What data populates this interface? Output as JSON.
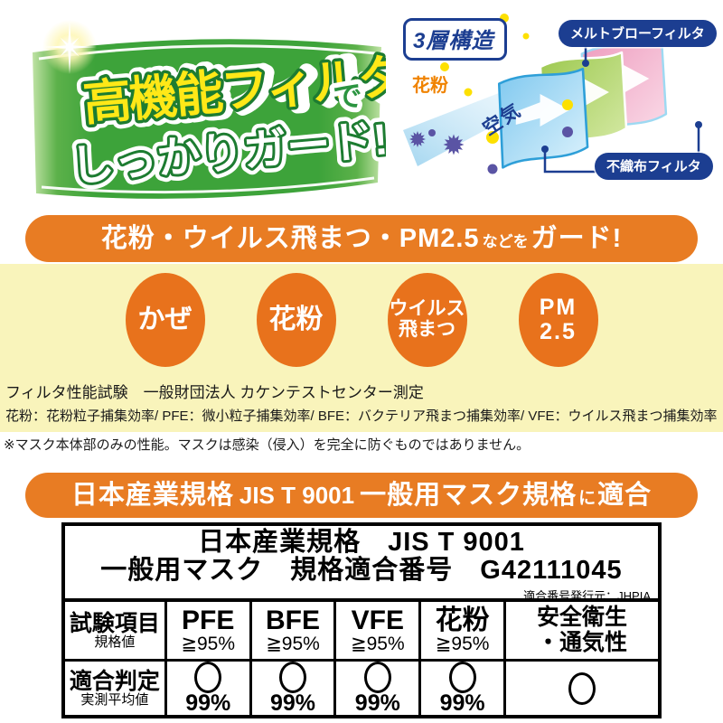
{
  "header": {
    "catch_line1_main": "高機能フィルタ",
    "catch_line1_suffix": "で",
    "catch_line2": "しっかりガード!",
    "diagram": {
      "badge": "3層構造",
      "label_melt_blown": "メルトブローフィルタ",
      "label_nonwoven": "不織布フィルタ",
      "pollen_label": "花粉",
      "air_label": "空気"
    }
  },
  "banner1": {
    "text_big1": "花粉・ウイルス飛まつ・PM2.5",
    "text_small": "などを",
    "text_big2": "ガード!"
  },
  "circles": [
    {
      "line1": "かぜ"
    },
    {
      "line1": "花粉"
    },
    {
      "line1": "ウイルス",
      "line2": "飛まつ"
    },
    {
      "line1": "PM",
      "line2": "2.5"
    }
  ],
  "test_info": {
    "line1": "フィルタ性能試験　一般財団法人 カケンテストセンター測定",
    "line2": "花粉：花粉粒子捕集効率/ PFE：微小粒子捕集効率/ BFE：バクテリア飛まつ捕集効率/ VFE：ウイルス飛まつ捕集効率",
    "note": "※マスク本体部のみの性能。マスクは感染（侵入）を完全に防ぐものではありません。"
  },
  "banner2": {
    "part1": "日本産業規格",
    "part2": "JIS T 9001",
    "part3": "一般用マスク規格",
    "part4": "に",
    "part5": "適合"
  },
  "jis_table": {
    "title_line1": "日本産業規格　JIS T 9001",
    "title_line2": "一般用マスク　規格適合番号　G42111045",
    "issuer": "適合番号発行元：JHPIA",
    "row1_header_main": "試験項目",
    "row1_header_sub": "規格値",
    "row2_header_main": "適合判定",
    "row2_header_sub": "実測平均値",
    "col_safety_line1": "安全衛生",
    "col_safety_line2": "・通気性",
    "pass_mark": "○",
    "columns": [
      {
        "name": "PFE",
        "standard": "≧95%",
        "result": "99%"
      },
      {
        "name": "BFE",
        "standard": "≧95%",
        "result": "99%"
      },
      {
        "name": "VFE",
        "standard": "≧95%",
        "result": "99%"
      },
      {
        "name": "花粉",
        "standard": "≧95%",
        "result": "99%"
      }
    ]
  },
  "colors": {
    "orange": "#e87c23",
    "navy": "#1c3e91",
    "ribbon_green": "#3da33a",
    "yellow_bg": "#f9f4bb",
    "catch_yellow": "#ffe817"
  }
}
